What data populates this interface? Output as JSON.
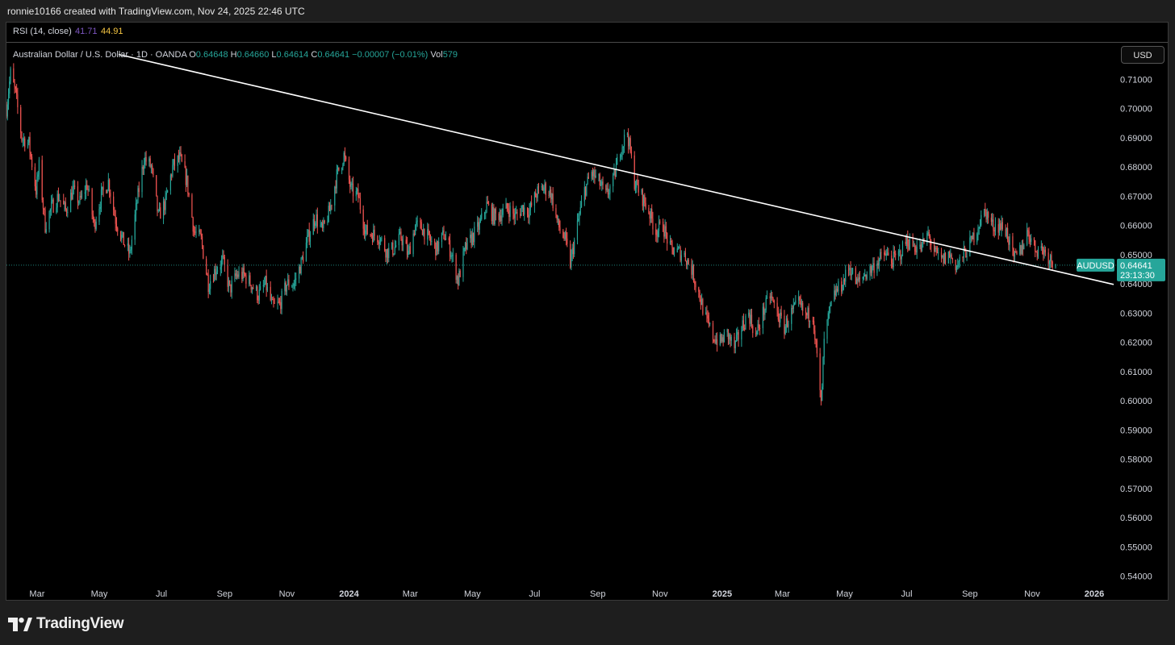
{
  "attribution": "ronnie10166 created with TradingView.com, Nov 24, 2025 22:46 UTC",
  "rsi": {
    "label": "RSI (14, close)",
    "value1": "41.71",
    "value2": "44.91",
    "value1_color": "#7e57c2",
    "value2_color": "#f5c542"
  },
  "legend": {
    "symbol": "Australian Dollar / U.S. Dollar · 1D · OANDA",
    "open_key": "O",
    "open": "0.64648",
    "high_key": "H",
    "high": "0.64660",
    "low_key": "L",
    "low": "0.64614",
    "close_key": "C",
    "close": "0.64641",
    "change": "−0.00007 (−0.01%)",
    "vol_key": "Vol",
    "vol": "579"
  },
  "currency_button": "USD",
  "price_tag": {
    "symbol": "AUDUSD",
    "price": "0.64641",
    "countdown": "23:13:30",
    "color": "#26a69a"
  },
  "colors": {
    "up": "#26a69a",
    "down": "#ef5350",
    "background": "#000000",
    "trendline": "#ffffff"
  },
  "brand": "TradingView",
  "chart_data": {
    "type": "candlestick",
    "title": "Australian Dollar / U.S. Dollar · 1D · OANDA",
    "x_start": "2023-01-30",
    "x_end": "2026-01-20",
    "x_ticks": [
      {
        "date": "2023-03-01",
        "label": "Mar",
        "bold": false
      },
      {
        "date": "2023-05-01",
        "label": "May",
        "bold": false
      },
      {
        "date": "2023-07-01",
        "label": "Jul",
        "bold": false
      },
      {
        "date": "2023-09-01",
        "label": "Sep",
        "bold": false
      },
      {
        "date": "2023-11-01",
        "label": "Nov",
        "bold": false
      },
      {
        "date": "2024-01-01",
        "label": "2024",
        "bold": true
      },
      {
        "date": "2024-03-01",
        "label": "Mar",
        "bold": false
      },
      {
        "date": "2024-05-01",
        "label": "May",
        "bold": false
      },
      {
        "date": "2024-07-01",
        "label": "Jul",
        "bold": false
      },
      {
        "date": "2024-09-01",
        "label": "Sep",
        "bold": false
      },
      {
        "date": "2024-11-01",
        "label": "Nov",
        "bold": false
      },
      {
        "date": "2025-01-01",
        "label": "2025",
        "bold": true
      },
      {
        "date": "2025-03-01",
        "label": "Mar",
        "bold": false
      },
      {
        "date": "2025-05-01",
        "label": "May",
        "bold": false
      },
      {
        "date": "2025-07-01",
        "label": "Jul",
        "bold": false
      },
      {
        "date": "2025-09-01",
        "label": "Sep",
        "bold": false
      },
      {
        "date": "2025-11-01",
        "label": "Nov",
        "bold": false
      },
      {
        "date": "2026-01-01",
        "label": "2026",
        "bold": true
      }
    ],
    "y_ticks": [
      0.71,
      0.7,
      0.69,
      0.68,
      0.67,
      0.66,
      0.65,
      0.64,
      0.63,
      0.62,
      0.61,
      0.6,
      0.59,
      0.58,
      0.57,
      0.56,
      0.55,
      0.54
    ],
    "ylim": [
      0.5385,
      0.7225
    ],
    "last_price": 0.64641,
    "trendline": {
      "start": {
        "date": "2023-05-20",
        "price": 0.7185
      },
      "end": {
        "date": "2026-01-20",
        "price": 0.6398
      }
    },
    "close_path": [
      [
        "2023-01-30",
        0.7
      ],
      [
        "2023-02-03",
        0.712
      ],
      [
        "2023-02-08",
        0.705
      ],
      [
        "2023-02-14",
        0.69
      ],
      [
        "2023-02-21",
        0.688
      ],
      [
        "2023-02-28",
        0.672
      ],
      [
        "2023-03-03",
        0.68
      ],
      [
        "2023-03-09",
        0.66
      ],
      [
        "2023-03-15",
        0.666
      ],
      [
        "2023-03-22",
        0.67
      ],
      [
        "2023-03-29",
        0.665
      ],
      [
        "2023-04-05",
        0.672
      ],
      [
        "2023-04-12",
        0.668
      ],
      [
        "2023-04-19",
        0.674
      ],
      [
        "2023-04-26",
        0.66
      ],
      [
        "2023-05-03",
        0.67
      ],
      [
        "2023-05-10",
        0.675
      ],
      [
        "2023-05-17",
        0.662
      ],
      [
        "2023-05-24",
        0.655
      ],
      [
        "2023-05-31",
        0.65
      ],
      [
        "2023-06-07",
        0.668
      ],
      [
        "2023-06-14",
        0.683
      ],
      [
        "2023-06-21",
        0.68
      ],
      [
        "2023-06-28",
        0.663
      ],
      [
        "2023-07-05",
        0.668
      ],
      [
        "2023-07-12",
        0.68
      ],
      [
        "2023-07-19",
        0.683
      ],
      [
        "2023-07-26",
        0.675
      ],
      [
        "2023-08-02",
        0.658
      ],
      [
        "2023-08-09",
        0.655
      ],
      [
        "2023-08-16",
        0.64
      ],
      [
        "2023-08-23",
        0.645
      ],
      [
        "2023-08-30",
        0.648
      ],
      [
        "2023-09-06",
        0.638
      ],
      [
        "2023-09-13",
        0.643
      ],
      [
        "2023-09-20",
        0.643
      ],
      [
        "2023-09-27",
        0.64
      ],
      [
        "2023-10-04",
        0.636
      ],
      [
        "2023-10-11",
        0.64
      ],
      [
        "2023-10-18",
        0.632
      ],
      [
        "2023-10-25",
        0.633
      ],
      [
        "2023-11-01",
        0.64
      ],
      [
        "2023-11-08",
        0.64
      ],
      [
        "2023-11-15",
        0.647
      ],
      [
        "2023-11-22",
        0.656
      ],
      [
        "2023-11-29",
        0.663
      ],
      [
        "2023-12-06",
        0.658
      ],
      [
        "2023-12-13",
        0.665
      ],
      [
        "2023-12-20",
        0.677
      ],
      [
        "2023-12-27",
        0.684
      ],
      [
        "2024-01-03",
        0.672
      ],
      [
        "2024-01-10",
        0.67
      ],
      [
        "2024-01-17",
        0.658
      ],
      [
        "2024-01-24",
        0.657
      ],
      [
        "2024-01-31",
        0.656
      ],
      [
        "2024-02-07",
        0.651
      ],
      [
        "2024-02-14",
        0.652
      ],
      [
        "2024-02-21",
        0.656
      ],
      [
        "2024-02-28",
        0.65
      ],
      [
        "2024-03-06",
        0.66
      ],
      [
        "2024-03-13",
        0.659
      ],
      [
        "2024-03-20",
        0.655
      ],
      [
        "2024-03-27",
        0.652
      ],
      [
        "2024-04-03",
        0.657
      ],
      [
        "2024-04-10",
        0.651
      ],
      [
        "2024-04-17",
        0.641
      ],
      [
        "2024-04-24",
        0.652
      ],
      [
        "2024-05-01",
        0.656
      ],
      [
        "2024-05-08",
        0.66
      ],
      [
        "2024-05-15",
        0.667
      ],
      [
        "2024-05-22",
        0.663
      ],
      [
        "2024-05-29",
        0.664
      ],
      [
        "2024-06-05",
        0.666
      ],
      [
        "2024-06-12",
        0.663
      ],
      [
        "2024-06-19",
        0.666
      ],
      [
        "2024-06-26",
        0.665
      ],
      [
        "2024-07-03",
        0.671
      ],
      [
        "2024-07-10",
        0.673
      ],
      [
        "2024-07-17",
        0.671
      ],
      [
        "2024-07-24",
        0.66
      ],
      [
        "2024-07-31",
        0.655
      ],
      [
        "2024-08-05",
        0.647
      ],
      [
        "2024-08-12",
        0.66
      ],
      [
        "2024-08-19",
        0.672
      ],
      [
        "2024-08-26",
        0.678
      ],
      [
        "2024-09-02",
        0.675
      ],
      [
        "2024-09-09",
        0.67
      ],
      [
        "2024-09-16",
        0.675
      ],
      [
        "2024-09-23",
        0.686
      ],
      [
        "2024-09-30",
        0.692
      ],
      [
        "2024-10-07",
        0.675
      ],
      [
        "2024-10-14",
        0.67
      ],
      [
        "2024-10-21",
        0.665
      ],
      [
        "2024-10-28",
        0.658
      ],
      [
        "2024-11-04",
        0.66
      ],
      [
        "2024-11-11",
        0.652
      ],
      [
        "2024-11-18",
        0.651
      ],
      [
        "2024-11-25",
        0.65
      ],
      [
        "2024-12-02",
        0.645
      ],
      [
        "2024-12-09",
        0.637
      ],
      [
        "2024-12-16",
        0.628
      ],
      [
        "2024-12-23",
        0.622
      ],
      [
        "2024-12-30",
        0.62
      ],
      [
        "2025-01-06",
        0.623
      ],
      [
        "2025-01-13",
        0.618
      ],
      [
        "2025-01-20",
        0.625
      ],
      [
        "2025-01-27",
        0.63
      ],
      [
        "2025-02-03",
        0.622
      ],
      [
        "2025-02-10",
        0.63
      ],
      [
        "2025-02-17",
        0.636
      ],
      [
        "2025-02-24",
        0.63
      ],
      [
        "2025-03-03",
        0.625
      ],
      [
        "2025-03-10",
        0.63
      ],
      [
        "2025-03-17",
        0.633
      ],
      [
        "2025-03-24",
        0.629
      ],
      [
        "2025-03-31",
        0.63
      ],
      [
        "2025-04-04",
        0.615
      ],
      [
        "2025-04-08",
        0.598
      ],
      [
        "2025-04-11",
        0.62
      ],
      [
        "2025-04-16",
        0.63
      ],
      [
        "2025-04-22",
        0.637
      ],
      [
        "2025-04-29",
        0.64
      ],
      [
        "2025-05-06",
        0.646
      ],
      [
        "2025-05-13",
        0.64
      ],
      [
        "2025-05-20",
        0.643
      ],
      [
        "2025-05-27",
        0.645
      ],
      [
        "2025-06-03",
        0.648
      ],
      [
        "2025-06-10",
        0.65
      ],
      [
        "2025-06-17",
        0.648
      ],
      [
        "2025-06-24",
        0.65
      ],
      [
        "2025-07-01",
        0.655
      ],
      [
        "2025-07-08",
        0.653
      ],
      [
        "2025-07-15",
        0.652
      ],
      [
        "2025-07-22",
        0.657
      ],
      [
        "2025-07-29",
        0.65
      ],
      [
        "2025-08-05",
        0.648
      ],
      [
        "2025-08-12",
        0.65
      ],
      [
        "2025-08-19",
        0.646
      ],
      [
        "2025-08-26",
        0.65
      ],
      [
        "2025-09-02",
        0.654
      ],
      [
        "2025-09-09",
        0.66
      ],
      [
        "2025-09-16",
        0.665
      ],
      [
        "2025-09-23",
        0.66
      ],
      [
        "2025-09-30",
        0.66
      ],
      [
        "2025-10-07",
        0.658
      ],
      [
        "2025-10-14",
        0.648
      ],
      [
        "2025-10-21",
        0.652
      ],
      [
        "2025-10-28",
        0.658
      ],
      [
        "2025-11-04",
        0.652
      ],
      [
        "2025-11-11",
        0.652
      ],
      [
        "2025-11-18",
        0.649
      ],
      [
        "2025-11-24",
        0.6464
      ]
    ]
  }
}
